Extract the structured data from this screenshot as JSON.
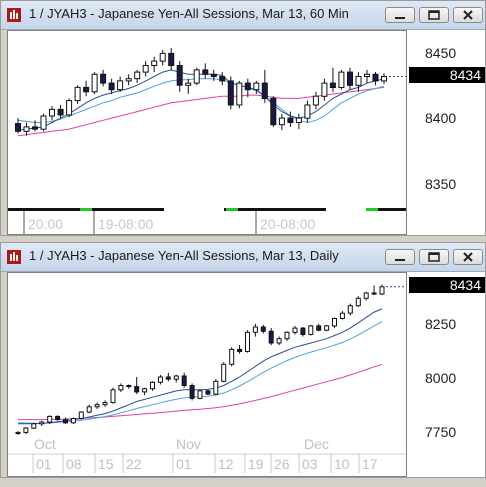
{
  "top_window": {
    "title": "1 / JYAH3 - Japanese Yen-All Sessions, Mar 13, 60 Min",
    "y_ticks": [
      "8450",
      "8400",
      "8350"
    ],
    "last_price": "8434",
    "x_labels": [
      "20:00",
      "19-08:00",
      "20-08:00"
    ]
  },
  "bottom_window": {
    "title": "1 / JYAH3 - Japanese Yen-All Sessions, Mar 13, Daily",
    "y_ticks": [
      "8250",
      "8000",
      "7750"
    ],
    "last_price": "8434",
    "month_labels": [
      "Oct",
      "Nov",
      "Dec"
    ],
    "x_labels": [
      "01",
      "08",
      "15",
      "22",
      "01",
      "12",
      "19",
      "26",
      "03",
      "10",
      "17"
    ]
  },
  "controls": {
    "minimize_icon": "minimize-icon",
    "restore_icon": "restore-icon",
    "close_icon": "close-icon"
  },
  "colors": {
    "up_candle": "#ffffff",
    "down_candle": "#1a1a4a",
    "ma_fast": "#2b4b9b",
    "ma_mid": "#4aa3e0",
    "ma_slow": "#e040a0",
    "session_green": "#22cc22"
  },
  "chart_data": [
    {
      "type": "candlestick",
      "interval": "60 Min",
      "y_ticks": [
        8450,
        8400,
        8350
      ],
      "ylim": [
        8325,
        8470
      ],
      "last_price": 8434,
      "x_labels": [
        "20:00",
        "19-08:00",
        "20-08:00"
      ],
      "candles": [
        [
          8391,
          8396,
          8382,
          8384
        ],
        [
          8384,
          8392,
          8380,
          8388
        ],
        [
          8388,
          8394,
          8384,
          8386
        ],
        [
          8386,
          8400,
          8384,
          8398
        ],
        [
          8398,
          8407,
          8394,
          8404
        ],
        [
          8404,
          8408,
          8396,
          8399
        ],
        [
          8399,
          8414,
          8397,
          8412
        ],
        [
          8412,
          8426,
          8409,
          8424
        ],
        [
          8424,
          8430,
          8416,
          8420
        ],
        [
          8420,
          8438,
          8418,
          8436
        ],
        [
          8436,
          8440,
          8425,
          8428
        ],
        [
          8428,
          8432,
          8418,
          8422
        ],
        [
          8422,
          8434,
          8420,
          8430
        ],
        [
          8430,
          8436,
          8426,
          8432
        ],
        [
          8432,
          8440,
          8428,
          8438
        ],
        [
          8438,
          8448,
          8434,
          8444
        ],
        [
          8444,
          8452,
          8438,
          8448
        ],
        [
          8448,
          8458,
          8444,
          8455
        ],
        [
          8455,
          8460,
          8440,
          8444
        ],
        [
          8444,
          8448,
          8420,
          8426
        ],
        [
          8426,
          8432,
          8418,
          8428
        ],
        [
          8428,
          8442,
          8426,
          8440
        ],
        [
          8440,
          8446,
          8432,
          8436
        ],
        [
          8436,
          8440,
          8430,
          8434
        ],
        [
          8434,
          8438,
          8426,
          8430
        ],
        [
          8430,
          8434,
          8404,
          8408
        ],
        [
          8408,
          8430,
          8405,
          8428
        ],
        [
          8428,
          8432,
          8415,
          8422
        ],
        [
          8422,
          8430,
          8418,
          8428
        ],
        [
          8428,
          8440,
          8410,
          8414
        ],
        [
          8414,
          8416,
          8388,
          8390
        ],
        [
          8390,
          8400,
          8385,
          8396
        ],
        [
          8396,
          8402,
          8388,
          8392
        ],
        [
          8392,
          8400,
          8386,
          8396
        ],
        [
          8396,
          8412,
          8392,
          8408
        ],
        [
          8408,
          8420,
          8404,
          8416
        ],
        [
          8416,
          8432,
          8412,
          8428
        ],
        [
          8428,
          8442,
          8420,
          8424
        ],
        [
          8424,
          8440,
          8422,
          8438
        ],
        [
          8438,
          8442,
          8422,
          8426
        ],
        [
          8426,
          8438,
          8420,
          8434
        ],
        [
          8434,
          8440,
          8428,
          8436
        ],
        [
          8436,
          8438,
          8426,
          8430
        ],
        [
          8430,
          8437,
          8427,
          8434
        ]
      ],
      "ma_fast": [
        8385,
        8386,
        8387,
        8388,
        8392,
        8396,
        8400,
        8405,
        8410,
        8414,
        8417,
        8419,
        8421,
        8423,
        8426,
        8430,
        8434,
        8438,
        8440,
        8438,
        8436,
        8436,
        8436,
        8436,
        8435,
        8428,
        8426,
        8424,
        8422,
        8416,
        8408,
        8402,
        8398,
        8396,
        8398,
        8402,
        8408,
        8414,
        8418,
        8422,
        8424,
        8428,
        8430,
        8432
      ],
      "ma_mid": [
        8394,
        8393,
        8392,
        8392,
        8393,
        8395,
        8398,
        8401,
        8404,
        8407,
        8410,
        8412,
        8415,
        8417,
        8419,
        8422,
        8425,
        8428,
        8430,
        8431,
        8431,
        8432,
        8432,
        8432,
        8431,
        8428,
        8426,
        8424,
        8421,
        8416,
        8410,
        8404,
        8398,
        8394,
        8392,
        8394,
        8398,
        8404,
        8410,
        8414,
        8418,
        8421,
        8423,
        8425
      ],
      "ma_slow": [
        8380,
        8381,
        8382,
        8383,
        8384,
        8385,
        8386,
        8388,
        8390,
        8392,
        8394,
        8396,
        8398,
        8400,
        8402,
        8404,
        8406,
        8408,
        8410,
        8411,
        8412,
        8413,
        8414,
        8415,
        8416,
        8416,
        8416,
        8417,
        8417,
        8416,
        8415,
        8414,
        8414,
        8414,
        8415,
        8416,
        8417,
        8418,
        8419,
        8420,
        8421,
        8422,
        8423,
        8424
      ]
    },
    {
      "type": "candlestick",
      "interval": "Daily",
      "y_ticks": [
        8250,
        8000,
        7750
      ],
      "ylim": [
        7700,
        8480
      ],
      "last_price": 8434,
      "month_labels": [
        "Oct",
        "Nov",
        "Dec"
      ],
      "x_labels": [
        "01",
        "08",
        "15",
        "22",
        "01",
        "12",
        "19",
        "26",
        "03",
        "10",
        "17"
      ],
      "candles": [
        [
          7745,
          7755,
          7738,
          7750
        ],
        [
          7750,
          7775,
          7742,
          7770
        ],
        [
          7770,
          7795,
          7765,
          7790
        ],
        [
          7790,
          7805,
          7780,
          7798
        ],
        [
          7798,
          7830,
          7790,
          7825
        ],
        [
          7825,
          7830,
          7805,
          7810
        ],
        [
          7810,
          7820,
          7790,
          7795
        ],
        [
          7795,
          7820,
          7790,
          7815
        ],
        [
          7815,
          7850,
          7810,
          7845
        ],
        [
          7845,
          7880,
          7840,
          7870
        ],
        [
          7870,
          7890,
          7860,
          7880
        ],
        [
          7880,
          7900,
          7870,
          7890
        ],
        [
          7890,
          7960,
          7885,
          7950
        ],
        [
          7950,
          7980,
          7940,
          7970
        ],
        [
          7970,
          7975,
          7955,
          7965
        ],
        [
          7965,
          8010,
          7930,
          7940
        ],
        [
          7940,
          7960,
          7925,
          7955
        ],
        [
          7955,
          7990,
          7945,
          7985
        ],
        [
          7985,
          8020,
          7975,
          8010
        ],
        [
          8010,
          8030,
          7990,
          8000
        ],
        [
          8000,
          8020,
          7985,
          8015
        ],
        [
          8015,
          8030,
          7960,
          7970
        ],
        [
          7970,
          7980,
          7900,
          7910
        ],
        [
          7910,
          7950,
          7905,
          7945
        ],
        [
          7945,
          7950,
          7925,
          7930
        ],
        [
          7930,
          8000,
          7925,
          7990
        ],
        [
          7990,
          8080,
          7985,
          8070
        ],
        [
          8070,
          8150,
          8060,
          8140
        ],
        [
          8140,
          8160,
          8120,
          8130
        ],
        [
          8130,
          8230,
          8125,
          8220
        ],
        [
          8220,
          8260,
          8200,
          8245
        ],
        [
          8245,
          8255,
          8215,
          8225
        ],
        [
          8225,
          8240,
          8160,
          8170
        ],
        [
          8170,
          8200,
          8160,
          8190
        ],
        [
          8190,
          8225,
          8180,
          8220
        ],
        [
          8220,
          8250,
          8210,
          8240
        ],
        [
          8240,
          8245,
          8200,
          8210
        ],
        [
          8210,
          8255,
          8205,
          8250
        ],
        [
          8250,
          8260,
          8225,
          8230
        ],
        [
          8230,
          8255,
          8225,
          8250
        ],
        [
          8250,
          8290,
          8240,
          8285
        ],
        [
          8285,
          8320,
          8280,
          8310
        ],
        [
          8310,
          8355,
          8300,
          8345
        ],
        [
          8345,
          8390,
          8340,
          8380
        ],
        [
          8380,
          8410,
          8370,
          8405
        ],
        [
          8405,
          8440,
          8395,
          8400
        ],
        [
          8400,
          8445,
          8395,
          8434
        ]
      ],
      "ma_fast": [
        7790,
        7790,
        7790,
        7792,
        7795,
        7800,
        7805,
        7810,
        7815,
        7822,
        7830,
        7838,
        7850,
        7865,
        7880,
        7895,
        7905,
        7915,
        7925,
        7935,
        7945,
        7950,
        7950,
        7950,
        7952,
        7958,
        7970,
        7990,
        8010,
        8035,
        8060,
        8085,
        8105,
        8120,
        8135,
        8150,
        8160,
        8170,
        8180,
        8190,
        8205,
        8220,
        8240,
        8265,
        8290,
        8315,
        8330
      ],
      "ma_mid": [
        7795,
        7794,
        7793,
        7793,
        7794,
        7797,
        7800,
        7803,
        7807,
        7812,
        7818,
        7824,
        7832,
        7842,
        7852,
        7862,
        7871,
        7880,
        7889,
        7898,
        7906,
        7912,
        7915,
        7918,
        7920,
        7925,
        7935,
        7950,
        7968,
        7988,
        8010,
        8032,
        8052,
        8070,
        8087,
        8102,
        8115,
        8127,
        8138,
        8148,
        8160,
        8172,
        8188,
        8208,
        8228,
        8250,
        8270
      ],
      "ma_slow": [
        7810,
        7810,
        7810,
        7810,
        7811,
        7812,
        7813,
        7814,
        7816,
        7818,
        7820,
        7822,
        7825,
        7828,
        7831,
        7834,
        7837,
        7840,
        7843,
        7846,
        7850,
        7853,
        7856,
        7859,
        7862,
        7866,
        7871,
        7877,
        7884,
        7892,
        7900,
        7909,
        7918,
        7928,
        7938,
        7948,
        7958,
        7968,
        7978,
        7988,
        7998,
        8008,
        8020,
        8032,
        8045,
        8058,
        8070
      ]
    }
  ]
}
